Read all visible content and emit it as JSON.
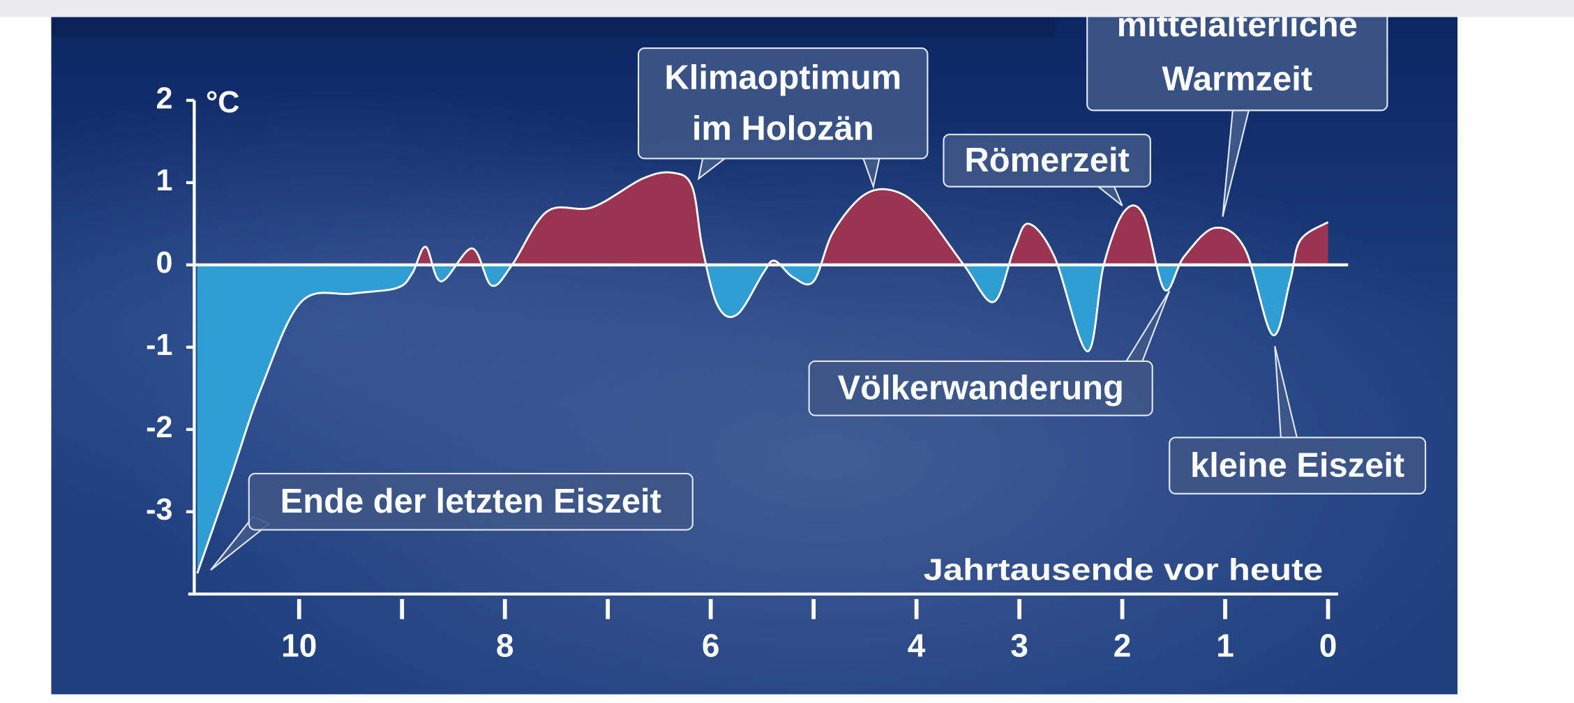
{
  "chart_data": {
    "type": "area",
    "y_unit": "°C",
    "x_label": "Jahrtausende vor heute",
    "x": [
      10.99,
      10.67,
      10.37,
      9.98,
      9.49,
      9.05,
      8.9,
      8.77,
      8.62,
      8.32,
      8.13,
      7.93,
      7.59,
      7.15,
      6.66,
      6.37,
      6.18,
      6.08,
      5.93,
      5.74,
      5.49,
      5.38,
      5.2,
      5.0,
      4.81,
      4.51,
      4.22,
      3.93,
      3.54,
      3.25,
      3.05,
      2.91,
      2.66,
      2.34,
      2.18,
      1.98,
      1.79,
      1.59,
      1.4,
      1.1,
      0.81,
      0.54,
      0.37,
      0.27,
      0.0
    ],
    "values": [
      -3.75,
      -2.6,
      -1.5,
      -0.45,
      -0.35,
      -0.28,
      -0.1,
      0.22,
      -0.2,
      0.2,
      -0.25,
      0,
      0.65,
      0.7,
      1.05,
      1.12,
      0.95,
      0.2,
      -0.5,
      -0.6,
      -0.1,
      0.05,
      -0.15,
      -0.2,
      0.4,
      0.85,
      0.9,
      0.65,
      0,
      -0.45,
      0.2,
      0.5,
      0.1,
      -1.05,
      0,
      0.65,
      0.6,
      -0.3,
      0.1,
      0.45,
      0.2,
      -0.85,
      -0.2,
      0.3,
      0.52
    ],
    "color_above": "#9a3452",
    "color_below": "#2f9ed2",
    "xlim": [
      11,
      0
    ],
    "xticks": [
      10,
      8,
      6,
      4,
      3,
      2,
      1,
      0
    ],
    "xminorticks": [
      9,
      7,
      5
    ],
    "ylim": [
      -4,
      2
    ],
    "yticks": [
      2,
      1,
      0,
      -1,
      -2,
      -3
    ],
    "annotations": [
      {
        "lines": [
          "Ende der letzten Eiszeit"
        ]
      },
      {
        "lines": [
          "Klimaoptimum",
          "im Holozän"
        ]
      },
      {
        "lines": [
          "Römerzeit"
        ]
      },
      {
        "lines": [
          "mittelalterliche",
          "Warmzeit"
        ]
      },
      {
        "lines": [
          "Völkerwanderung"
        ]
      },
      {
        "lines": [
          "kleine Eiszeit"
        ]
      }
    ]
  }
}
